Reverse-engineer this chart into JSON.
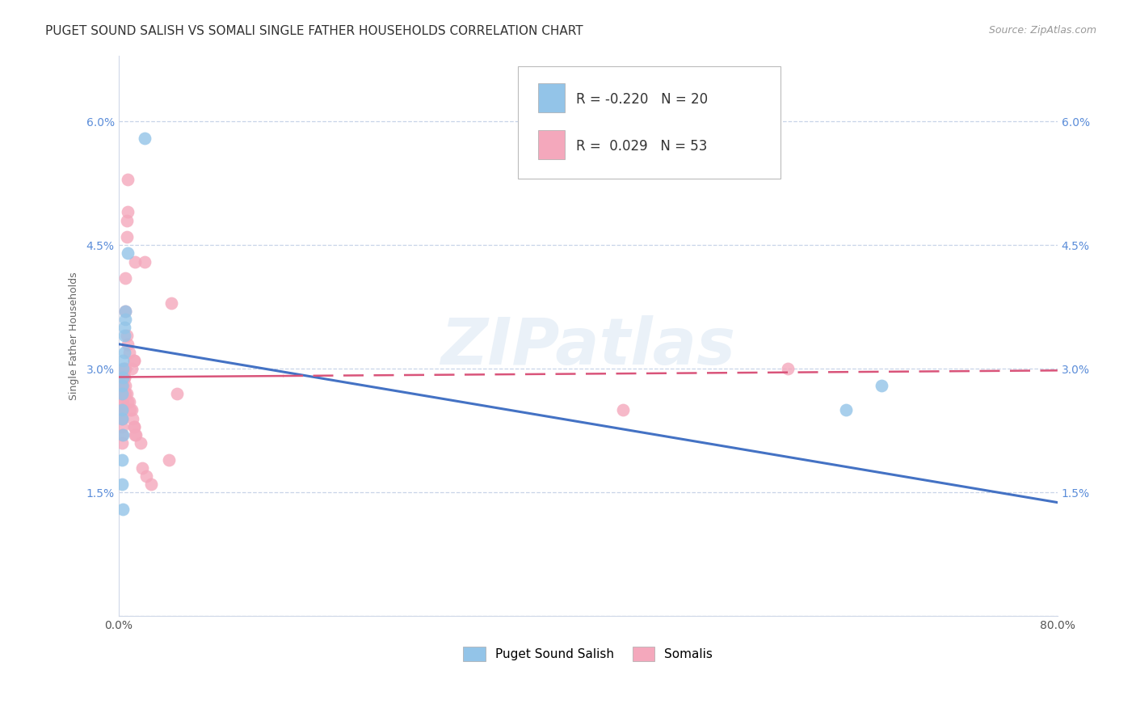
{
  "title": "PUGET SOUND SALISH VS SOMALI SINGLE FATHER HOUSEHOLDS CORRELATION CHART",
  "source": "Source: ZipAtlas.com",
  "ylabel": "Single Father Households",
  "legend_blue_r": "-0.220",
  "legend_blue_n": "20",
  "legend_pink_r": "0.029",
  "legend_pink_n": "53",
  "legend_blue_label": "Puget Sound Salish",
  "legend_pink_label": "Somalis",
  "xlim": [
    0.0,
    0.8
  ],
  "ylim": [
    0.0,
    0.068
  ],
  "blue_color": "#93c4e8",
  "pink_color": "#f4a8bc",
  "trend_blue_color": "#4472c4",
  "trend_pink_color": "#d9547a",
  "background_color": "#ffffff",
  "grid_color": "#c8d4e8",
  "blue_points_x": [
    0.022,
    0.008,
    0.006,
    0.006,
    0.005,
    0.005,
    0.005,
    0.004,
    0.004,
    0.004,
    0.003,
    0.003,
    0.003,
    0.003,
    0.004,
    0.003,
    0.003,
    0.004,
    0.62,
    0.65
  ],
  "blue_points_y": [
    0.058,
    0.044,
    0.037,
    0.036,
    0.035,
    0.034,
    0.032,
    0.031,
    0.03,
    0.029,
    0.028,
    0.027,
    0.025,
    0.024,
    0.022,
    0.019,
    0.016,
    0.013,
    0.025,
    0.028
  ],
  "pink_points_x": [
    0.008,
    0.008,
    0.022,
    0.045,
    0.007,
    0.007,
    0.014,
    0.006,
    0.006,
    0.007,
    0.008,
    0.009,
    0.013,
    0.013,
    0.011,
    0.006,
    0.005,
    0.004,
    0.004,
    0.004,
    0.003,
    0.003,
    0.003,
    0.003,
    0.003,
    0.003,
    0.003,
    0.003,
    0.003,
    0.003,
    0.003,
    0.005,
    0.005,
    0.006,
    0.006,
    0.007,
    0.008,
    0.009,
    0.01,
    0.011,
    0.012,
    0.013,
    0.013,
    0.014,
    0.015,
    0.019,
    0.02,
    0.024,
    0.028,
    0.05,
    0.043,
    0.43,
    0.57
  ],
  "pink_points_y": [
    0.053,
    0.049,
    0.043,
    0.038,
    0.048,
    0.046,
    0.043,
    0.041,
    0.037,
    0.034,
    0.033,
    0.032,
    0.031,
    0.031,
    0.03,
    0.03,
    0.029,
    0.029,
    0.028,
    0.028,
    0.027,
    0.027,
    0.026,
    0.026,
    0.025,
    0.025,
    0.024,
    0.024,
    0.023,
    0.022,
    0.021,
    0.03,
    0.029,
    0.028,
    0.027,
    0.027,
    0.026,
    0.026,
    0.025,
    0.025,
    0.024,
    0.023,
    0.023,
    0.022,
    0.022,
    0.021,
    0.018,
    0.017,
    0.016,
    0.027,
    0.019,
    0.025,
    0.03
  ],
  "ytick_vals": [
    0.0,
    0.015,
    0.03,
    0.045,
    0.06
  ],
  "ytick_labels": [
    "",
    "1.5%",
    "3.0%",
    "4.5%",
    "6.0%"
  ],
  "xtick_vals": [
    0.0,
    0.1,
    0.2,
    0.3,
    0.4,
    0.5,
    0.6,
    0.7,
    0.8
  ],
  "xtick_labels": [
    "0.0%",
    "",
    "",
    "",
    "",
    "",
    "",
    "",
    "80.0%"
  ],
  "title_fontsize": 11,
  "axis_label_fontsize": 9,
  "tick_fontsize": 10,
  "source_fontsize": 9
}
